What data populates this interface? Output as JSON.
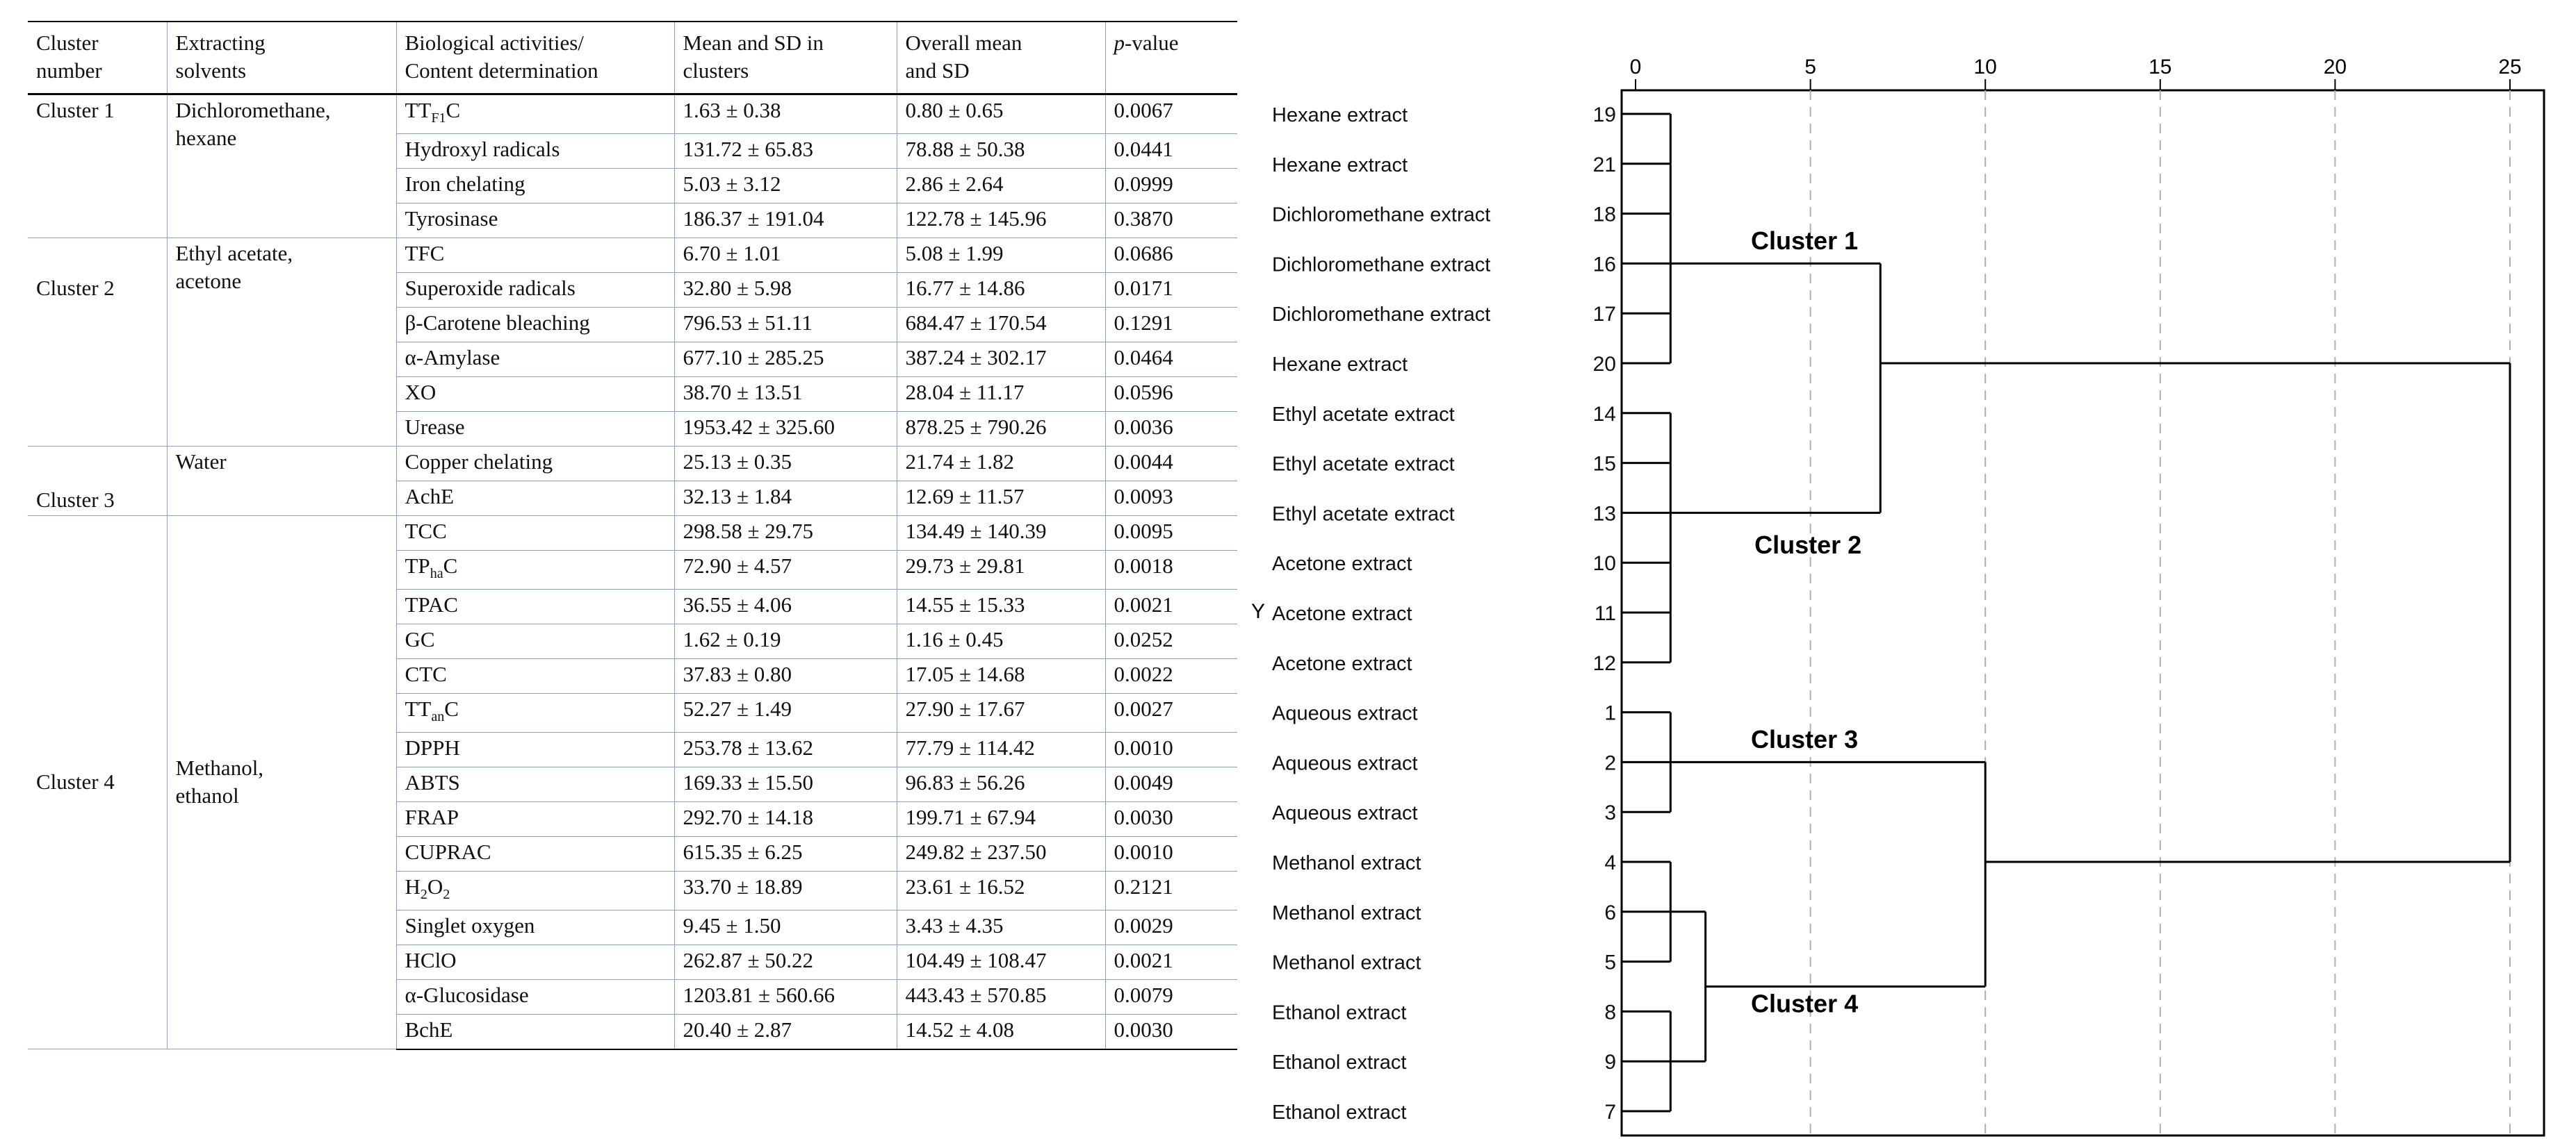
{
  "table": {
    "headers": [
      "Cluster number",
      "Extracting solvents",
      "Biological activities/ Content determination",
      "Mean and SD in clusters",
      "Overall mean and SD",
      "p-value"
    ],
    "headers_split": [
      [
        "Cluster",
        "number"
      ],
      [
        "Extracting",
        "solvents"
      ],
      [
        "Biological activities/",
        "Content determination"
      ],
      [
        "Mean and SD in",
        "clusters"
      ],
      [
        "Overall mean",
        "and SD"
      ],
      [
        "p",
        "-value"
      ]
    ],
    "groups": [
      {
        "cluster": "Cluster 1",
        "solvent_lines": [
          "Dichloromethane,",
          "hexane"
        ],
        "rows": [
          {
            "base": "TT",
            "sub": "F1",
            "rest": "C",
            "mean": "1.63 ± 0.38",
            "overall": "0.80 ± 0.65",
            "p": "0.0067"
          },
          {
            "base": "Hydroxyl radicals",
            "sub": "",
            "rest": "",
            "mean": "131.72 ± 65.83",
            "overall": "78.88 ± 50.38",
            "p": "0.0441"
          },
          {
            "base": "Iron chelating",
            "sub": "",
            "rest": "",
            "mean": "5.03 ± 3.12",
            "overall": "2.86 ± 2.64",
            "p": "0.0999"
          },
          {
            "base": "Tyrosinase",
            "sub": "",
            "rest": "",
            "mean": "186.37 ± 191.04",
            "overall": "122.78 ± 145.96",
            "p": "0.3870"
          }
        ]
      },
      {
        "cluster": "Cluster 2",
        "solvent_lines": [
          "Ethyl acetate,",
          "acetone"
        ],
        "rows": [
          {
            "base": "TFC",
            "sub": "",
            "rest": "",
            "mean": "6.70 ± 1.01",
            "overall": "5.08 ± 1.99",
            "p": "0.0686"
          },
          {
            "base": "Superoxide radicals",
            "sub": "",
            "rest": "",
            "mean": "32.80 ± 5.98",
            "overall": "16.77 ± 14.86",
            "p": "0.0171"
          },
          {
            "base": "β-Carotene bleaching",
            "sub": "",
            "rest": "",
            "mean": "796.53 ± 51.11",
            "overall": "684.47 ± 170.54",
            "p": "0.1291"
          },
          {
            "base": "α-Amylase",
            "sub": "",
            "rest": "",
            "mean": "677.10 ± 285.25",
            "overall": "387.24 ± 302.17",
            "p": "0.0464"
          },
          {
            "base": "XO",
            "sub": "",
            "rest": "",
            "mean": "38.70 ± 13.51",
            "overall": "28.04 ± 11.17",
            "p": "0.0596"
          },
          {
            "base": "Urease",
            "sub": "",
            "rest": "",
            "mean": "1953.42 ± 325.60",
            "overall": "878.25 ± 790.26",
            "p": "0.0036"
          }
        ]
      },
      {
        "cluster": "Cluster 3",
        "solvent_lines": [
          "Water"
        ],
        "rows": [
          {
            "base": "Copper chelating",
            "sub": "",
            "rest": "",
            "mean": "25.13 ± 0.35",
            "overall": "21.74 ± 1.82",
            "p": "0.0044"
          },
          {
            "base": "AchE",
            "sub": "",
            "rest": "",
            "mean": "32.13 ± 1.84",
            "overall": "12.69 ± 11.57",
            "p": "0.0093"
          }
        ]
      },
      {
        "cluster": "Cluster 4",
        "solvent_lines": [
          "Methanol,",
          "ethanol"
        ],
        "rows": [
          {
            "base": "TCC",
            "sub": "",
            "rest": "",
            "mean": "298.58 ± 29.75",
            "overall": "134.49 ± 140.39",
            "p": "0.0095"
          },
          {
            "base": "TP",
            "sub": "ha",
            "rest": "C",
            "mean": "72.90 ± 4.57",
            "overall": "29.73 ± 29.81",
            "p": "0.0018"
          },
          {
            "base": "TPAC",
            "sub": "",
            "rest": "",
            "mean": "36.55 ± 4.06",
            "overall": "14.55 ± 15.33",
            "p": "0.0021"
          },
          {
            "base": "GC",
            "sub": "",
            "rest": "",
            "mean": "1.62 ± 0.19",
            "overall": "1.16 ± 0.45",
            "p": "0.0252"
          },
          {
            "base": "CTC",
            "sub": "",
            "rest": "",
            "mean": "37.83 ± 0.80",
            "overall": "17.05 ± 14.68",
            "p": "0.0022"
          },
          {
            "base": "TT",
            "sub": "an",
            "rest": "C",
            "mean": "52.27 ± 1.49",
            "overall": "27.90 ± 17.67",
            "p": "0.0027"
          },
          {
            "base": "DPPH",
            "sub": "",
            "rest": "",
            "mean": "253.78 ± 13.62",
            "overall": "77.79 ± 114.42",
            "p": "0.0010"
          },
          {
            "base": "ABTS",
            "sub": "",
            "rest": "",
            "mean": "169.33 ± 15.50",
            "overall": "96.83 ± 56.26",
            "p": "0.0049"
          },
          {
            "base": "FRAP",
            "sub": "",
            "rest": "",
            "mean": "292.70 ± 14.18",
            "overall": "199.71 ± 67.94",
            "p": "0.0030"
          },
          {
            "base": "CUPRAC",
            "sub": "",
            "rest": "",
            "mean": "615.35 ± 6.25",
            "overall": "249.82 ± 237.50",
            "p": "0.0010"
          },
          {
            "base": "H",
            "sub": "2",
            "rest": "O",
            "sub2": "2",
            "mean": "33.70 ± 18.89",
            "overall": "23.61 ± 16.52",
            "p": "0.2121"
          },
          {
            "base": "Singlet oxygen",
            "sub": "",
            "rest": "",
            "mean": "9.45 ± 1.50",
            "overall": "3.43 ± 4.35",
            "p": "0.0029"
          },
          {
            "base": "HClO",
            "sub": "",
            "rest": "",
            "mean": "262.87 ± 50.22",
            "overall": "104.49 ± 108.47",
            "p": "0.0021"
          },
          {
            "base": "α-Glucosidase",
            "sub": "",
            "rest": "",
            "mean": "1203.81 ± 560.66",
            "overall": "443.43 ± 570.85",
            "p": "0.0079"
          },
          {
            "base": "BchE",
            "sub": "",
            "rest": "",
            "mean": "20.40 ± 2.87",
            "overall": "14.52 ± 4.08",
            "p": "0.0030"
          }
        ]
      }
    ]
  },
  "chart_data": {
    "type": "dendrogram",
    "x_ticks": [
      0,
      5,
      10,
      15,
      20,
      25
    ],
    "xlim": [
      0,
      25
    ],
    "y_axis_label": "Y",
    "leaves": [
      {
        "label": "Hexane extract",
        "id": "19"
      },
      {
        "label": "Hexane extract",
        "id": "21"
      },
      {
        "label": "Dichloromethane extract",
        "id": "18"
      },
      {
        "label": "Dichloromethane extract",
        "id": "16"
      },
      {
        "label": "Dichloromethane extract",
        "id": "17"
      },
      {
        "label": "Hexane extract",
        "id": "20"
      },
      {
        "label": "Ethyl acetate extract",
        "id": "14"
      },
      {
        "label": "Ethyl acetate extract",
        "id": "15"
      },
      {
        "label": "Ethyl acetate extract",
        "id": "13"
      },
      {
        "label": "Acetone extract",
        "id": "10"
      },
      {
        "label": "Acetone extract",
        "id": "11"
      },
      {
        "label": "Acetone extract",
        "id": "12"
      },
      {
        "label": "Aqueous extract",
        "id": "1"
      },
      {
        "label": "Aqueous extract",
        "id": "2"
      },
      {
        "label": "Aqueous extract",
        "id": "3"
      },
      {
        "label": "Methanol extract",
        "id": "4"
      },
      {
        "label": "Methanol extract",
        "id": "6"
      },
      {
        "label": "Methanol extract",
        "id": "5"
      },
      {
        "label": "Ethanol extract",
        "id": "8"
      },
      {
        "label": "Ethanol extract",
        "id": "9"
      },
      {
        "label": "Ethanol extract",
        "id": "7"
      }
    ],
    "links": [
      {
        "from_y": 0,
        "to_y": 5,
        "stem_y": 3,
        "distance": 1
      },
      {
        "from_y": 6,
        "to_y": 11,
        "stem_y": 8,
        "distance": 1
      },
      {
        "from_y": 12,
        "to_y": 14,
        "stem_y": 13,
        "distance": 1
      },
      {
        "from_y": 15,
        "to_y": 17,
        "stem_y": 16,
        "distance": 1
      },
      {
        "from_y": 18,
        "to_y": 20,
        "stem_y": 19,
        "distance": 1
      },
      {
        "from_y": 16,
        "to_y": 19,
        "stem_y": 17.5,
        "distance": 2
      },
      {
        "from_y": 3,
        "to_y": 8,
        "stem_y": 5,
        "distance": 7
      },
      {
        "from_y": 13,
        "to_y": 17.5,
        "stem_y": 15,
        "distance": 10
      },
      {
        "from_y": 5,
        "to_y": 15,
        "stem_y": 10,
        "distance": 25
      }
    ],
    "cluster_labels": [
      {
        "text": "Cluster 1",
        "distance": 3.3,
        "y": 2.55
      },
      {
        "text": "Cluster 2",
        "distance": 3.4,
        "y": 8.65
      },
      {
        "text": "Cluster 3",
        "distance": 3.3,
        "y": 12.55
      },
      {
        "text": "Cluster 4",
        "distance": 3.3,
        "y": 17.85
      }
    ]
  }
}
